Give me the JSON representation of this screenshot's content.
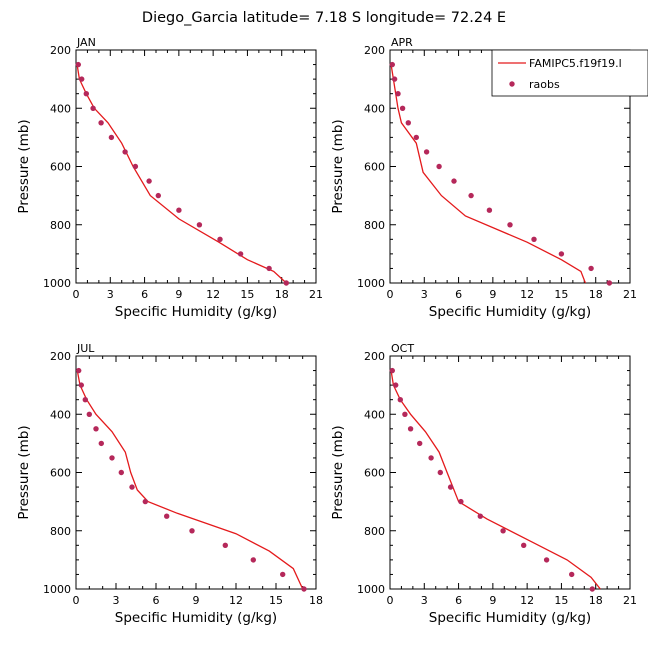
{
  "title": "Diego_Garcia  latitude= 7.18 S longitude= 72.24 E",
  "legend": {
    "model_label": "FAMIPC5.f19f19.l",
    "obs_label": "raobs"
  },
  "colors": {
    "model": "#e41a1c",
    "obs": "#b5285a",
    "axis": "#000000",
    "background": "#ffffff"
  },
  "chart_data": [
    {
      "type": "line",
      "panel_label": "JAN",
      "xlabel": "Specific Humidity (g/kg)",
      "ylabel": "Pressure (mb)",
      "xlim": [
        0,
        21
      ],
      "ylim": [
        1000,
        200
      ],
      "xticks": [
        0,
        3,
        6,
        9,
        12,
        15,
        18,
        21
      ],
      "yticks": [
        200,
        400,
        600,
        800,
        1000
      ],
      "series": [
        {
          "name": "FAMIPC5.f19f19.l",
          "kind": "line",
          "x": [
            0.1,
            0.3,
            0.9,
            1.6,
            2.8,
            4.0,
            5.0,
            6.5,
            9.0,
            12.5,
            15.0,
            17.3,
            18.4
          ],
          "y": [
            250,
            300,
            350,
            400,
            450,
            520,
            600,
            700,
            780,
            860,
            920,
            960,
            1000
          ]
        },
        {
          "name": "raobs",
          "kind": "scatter",
          "x": [
            0.2,
            0.5,
            0.9,
            1.5,
            2.2,
            3.1,
            4.3,
            5.2,
            6.4,
            7.2,
            9.0,
            10.8,
            12.6,
            14.4,
            16.9,
            18.4
          ],
          "y": [
            250,
            300,
            350,
            400,
            450,
            500,
            550,
            600,
            650,
            700,
            750,
            800,
            850,
            900,
            950,
            1000
          ]
        }
      ]
    },
    {
      "type": "line",
      "panel_label": "APR",
      "xlabel": "Specific Humidity (g/kg)",
      "ylabel": "Pressure (mb)",
      "xlim": [
        0,
        21
      ],
      "ylim": [
        1000,
        200
      ],
      "xticks": [
        0,
        3,
        6,
        9,
        12,
        15,
        18,
        21
      ],
      "yticks": [
        200,
        400,
        600,
        800,
        1000
      ],
      "series": [
        {
          "name": "FAMIPC5.f19f19.l",
          "kind": "line",
          "x": [
            0.1,
            0.3,
            0.7,
            1.0,
            2.3,
            2.9,
            4.5,
            6.6,
            12.0,
            15.0,
            16.7,
            17.1
          ],
          "y": [
            250,
            300,
            400,
            450,
            520,
            620,
            700,
            770,
            860,
            920,
            960,
            1000
          ]
        },
        {
          "name": "raobs",
          "kind": "scatter",
          "x": [
            0.2,
            0.4,
            0.7,
            1.1,
            1.6,
            2.3,
            3.2,
            4.3,
            5.6,
            7.1,
            8.7,
            10.5,
            12.6,
            15.0,
            17.6,
            19.2
          ],
          "y": [
            250,
            300,
            350,
            400,
            450,
            500,
            550,
            600,
            650,
            700,
            750,
            800,
            850,
            900,
            950,
            1000
          ]
        }
      ]
    },
    {
      "type": "line",
      "panel_label": "JUL",
      "xlabel": "Specific Humidity (g/kg)",
      "ylabel": "Pressure (mb)",
      "xlim": [
        0,
        18
      ],
      "ylim": [
        1000,
        200
      ],
      "xticks": [
        0,
        3,
        6,
        9,
        12,
        15,
        18
      ],
      "yticks": [
        200,
        400,
        600,
        800,
        1000
      ],
      "series": [
        {
          "name": "FAMIPC5.f19f19.l",
          "kind": "line",
          "x": [
            0.1,
            0.3,
            0.8,
            1.5,
            2.7,
            3.7,
            4.1,
            4.6,
            5.4,
            7.6,
            12.0,
            14.5,
            16.3,
            17.0
          ],
          "y": [
            250,
            300,
            350,
            400,
            460,
            530,
            600,
            660,
            700,
            740,
            810,
            870,
            930,
            1000
          ]
        },
        {
          "name": "raobs",
          "kind": "scatter",
          "x": [
            0.2,
            0.4,
            0.7,
            1.0,
            1.5,
            1.9,
            2.7,
            3.4,
            4.2,
            5.2,
            6.8,
            8.7,
            11.2,
            13.3,
            15.5,
            17.1
          ],
          "y": [
            250,
            300,
            350,
            400,
            450,
            500,
            550,
            600,
            650,
            700,
            750,
            800,
            850,
            900,
            950,
            1000
          ]
        }
      ]
    },
    {
      "type": "line",
      "panel_label": "OCT",
      "xlabel": "Specific Humidity (g/kg)",
      "ylabel": "Pressure (mb)",
      "xlim": [
        0,
        21
      ],
      "ylim": [
        1000,
        200
      ],
      "xticks": [
        0,
        3,
        6,
        9,
        12,
        15,
        18,
        21
      ],
      "yticks": [
        200,
        400,
        600,
        800,
        1000
      ],
      "series": [
        {
          "name": "FAMIPC5.f19f19.l",
          "kind": "line",
          "x": [
            0.1,
            0.3,
            0.9,
            1.8,
            3.1,
            4.3,
            5.0,
            6.0,
            8.5,
            12.5,
            15.5,
            17.6,
            18.4
          ],
          "y": [
            250,
            300,
            350,
            400,
            460,
            530,
            600,
            700,
            760,
            840,
            900,
            960,
            1000
          ]
        },
        {
          "name": "raobs",
          "kind": "scatter",
          "x": [
            0.2,
            0.5,
            0.9,
            1.3,
            1.8,
            2.6,
            3.6,
            4.4,
            5.3,
            6.2,
            7.9,
            9.9,
            11.7,
            13.7,
            15.9,
            17.7
          ],
          "y": [
            250,
            300,
            350,
            400,
            450,
            500,
            550,
            600,
            650,
            700,
            750,
            800,
            850,
            900,
            950,
            1000
          ]
        }
      ]
    }
  ]
}
